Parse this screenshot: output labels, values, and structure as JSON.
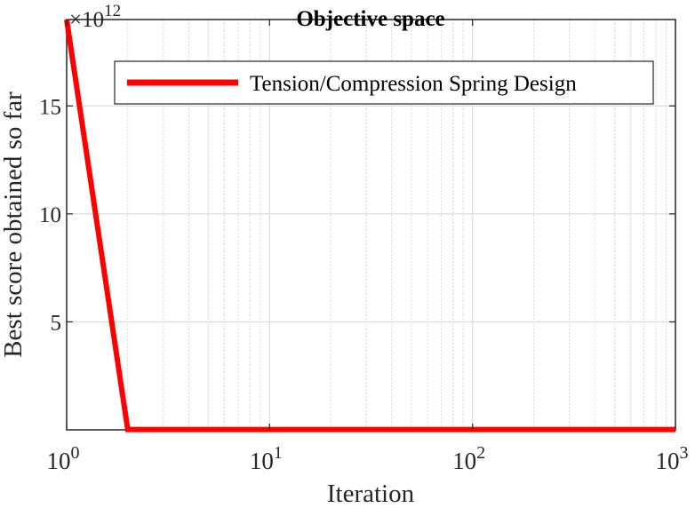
{
  "chart_data": {
    "type": "line",
    "title": "Objective space",
    "xlabel": "Iteration",
    "ylabel": "Best score obtained so far",
    "x_scale": "log",
    "xlim": [
      1,
      1000
    ],
    "x_ticks": [
      {
        "base": "10",
        "exp": "0",
        "value": 1
      },
      {
        "base": "10",
        "exp": "1",
        "value": 10
      },
      {
        "base": "10",
        "exp": "2",
        "value": 100
      },
      {
        "base": "10",
        "exp": "3",
        "value": 1000
      }
    ],
    "y_multiplier_prefix": "×10",
    "y_multiplier_exp": "12",
    "ylim": [
      0,
      19
    ],
    "y_ticks": [
      5,
      10,
      15
    ],
    "grid": true,
    "legend_position": "top-right",
    "series": [
      {
        "name": "Tension/Compression Spring Design",
        "color": "#ff0000",
        "x": [
          1,
          2,
          3,
          10,
          100,
          1000
        ],
        "y": [
          19,
          0.013,
          0.013,
          0.013,
          0.013,
          0.013
        ]
      }
    ]
  }
}
